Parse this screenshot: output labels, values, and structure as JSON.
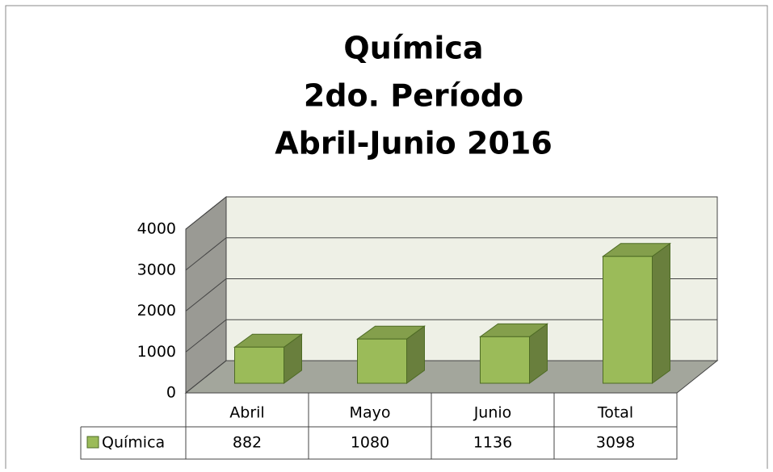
{
  "chart_data": {
    "type": "bar3d",
    "title": [
      "Química",
      "2do. Período",
      "Abril-Junio 2016"
    ],
    "categories": [
      "Abril",
      "Mayo",
      "Junio",
      "Total"
    ],
    "series": [
      {
        "name": "Química",
        "color": "#9bbb59",
        "values": [
          882,
          1080,
          1136,
          3098
        ]
      }
    ],
    "ylim": [
      0,
      4000
    ],
    "yticks": [
      0,
      1000,
      2000,
      3000,
      4000
    ],
    "grid": true,
    "data_table": true
  }
}
